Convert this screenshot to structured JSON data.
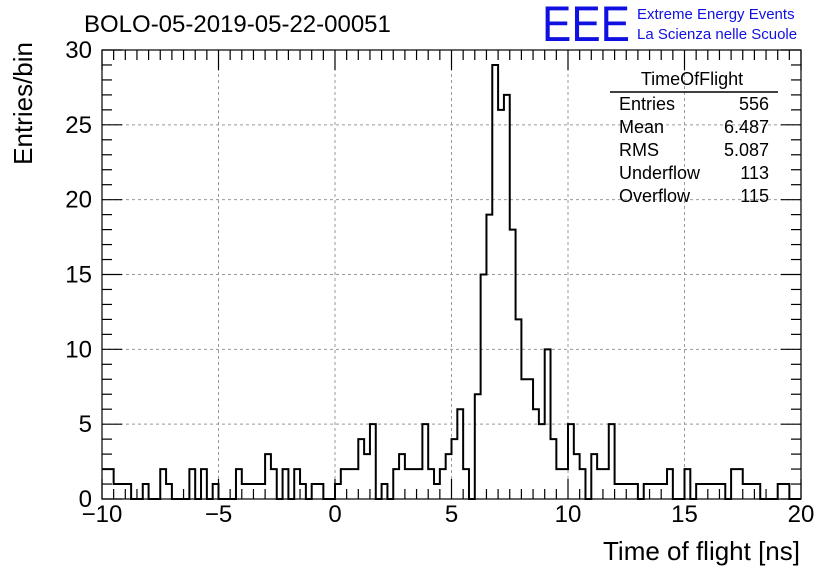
{
  "chart_data": {
    "type": "bar",
    "title": "BOLO-05-2019-05-22-00051",
    "xlabel": "Time of flight [ns]",
    "ylabel": "Entries/bin",
    "xlim": [
      -10,
      20
    ],
    "ylim": [
      0,
      30
    ],
    "x_ticks": [
      -10,
      -5,
      0,
      5,
      10,
      15,
      20
    ],
    "y_ticks": [
      0,
      5,
      10,
      15,
      20,
      25,
      30
    ],
    "x_tick_labels": [
      "−10",
      "−5",
      "0",
      "5",
      "10",
      "15",
      "20"
    ],
    "y_tick_labels": [
      "0",
      "5",
      "10",
      "15",
      "20",
      "25",
      "30"
    ],
    "grid": true,
    "bin_width": 0.25,
    "bin_start": -10,
    "values": [
      2,
      2,
      1,
      1,
      1,
      0,
      0,
      1,
      0,
      0,
      2,
      1,
      0,
      0,
      0,
      2,
      0,
      2,
      0,
      1,
      0,
      0,
      0,
      2,
      1,
      1,
      1,
      1,
      3,
      2,
      0,
      2,
      0,
      2,
      1,
      0,
      1,
      1,
      0,
      0,
      1,
      2,
      2,
      2,
      4,
      3,
      5,
      0,
      1,
      0,
      2,
      3,
      2,
      2,
      2,
      5,
      2,
      1,
      2,
      3,
      4,
      6,
      2,
      0,
      7,
      15,
      19,
      29,
      26,
      27,
      18,
      12,
      8,
      8,
      6,
      5,
      10,
      4,
      2,
      2,
      5,
      3,
      2,
      0,
      3,
      2,
      2,
      5,
      1,
      1,
      1,
      1,
      0,
      1,
      1,
      1,
      1,
      2,
      0,
      0,
      2,
      0,
      1,
      1,
      1,
      1,
      1,
      0,
      2,
      2,
      1,
      1,
      1,
      0,
      0,
      0,
      1,
      1,
      0,
      0
    ],
    "stats_box": {
      "title": "TimeOfFlight",
      "rows": [
        {
          "label": "Entries",
          "value": "556"
        },
        {
          "label": "Mean",
          "value": "6.487"
        },
        {
          "label": "RMS",
          "value": "5.087"
        },
        {
          "label": "Underflow",
          "value": "113"
        },
        {
          "label": "Overflow",
          "value": "115"
        }
      ]
    },
    "line_color": "#000000",
    "grid_color": "#999999"
  },
  "logo": {
    "text": "EEE",
    "line1": "Extreme Energy Events",
    "line2": "La Scienza nelle Scuole",
    "color": "#1010e0"
  }
}
